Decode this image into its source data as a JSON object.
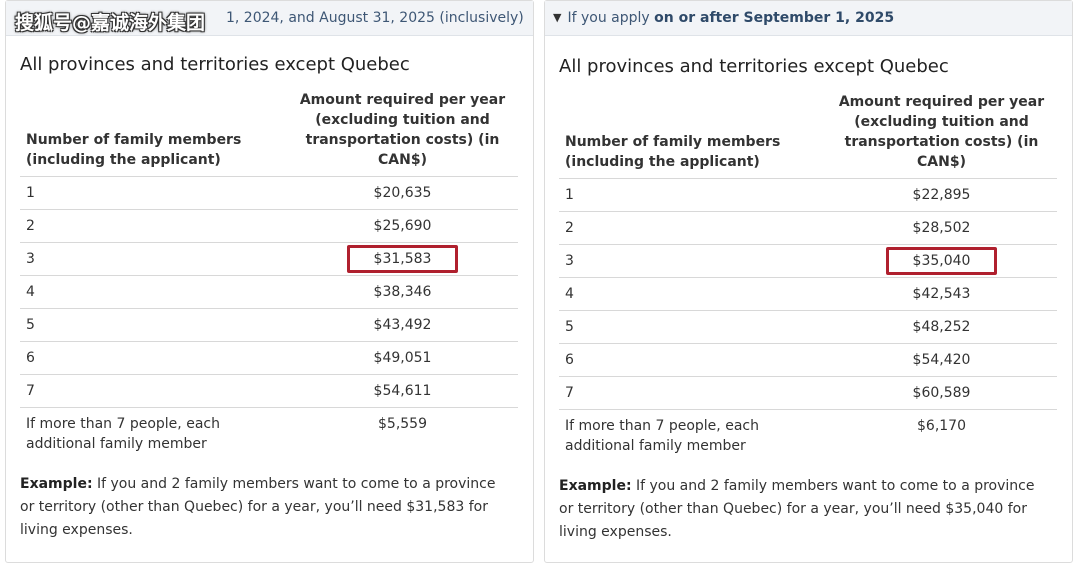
{
  "watermark": "搜狐号@嘉诚海外集团",
  "panels": [
    {
      "summary_prefix": "",
      "summary_bold": "",
      "summary_suffix": "1, 2024, and August 31, 2025 (inclusively)",
      "heading": "All provinces and territories except Quebec",
      "col1_header": "Number of family members (including the applicant)",
      "col2_header": "Amount required per year (excluding tuition and transportation costs) (in CAN$)",
      "rows": [
        {
          "members": "1",
          "amount": "$20,635"
        },
        {
          "members": "2",
          "amount": "$25,690"
        },
        {
          "members": "3",
          "amount": "$31,583"
        },
        {
          "members": "4",
          "amount": "$38,346"
        },
        {
          "members": "5",
          "amount": "$43,492"
        },
        {
          "members": "6",
          "amount": "$49,051"
        },
        {
          "members": "7",
          "amount": "$54,611"
        }
      ],
      "extra_label": "If more than 7 people, each additional family member",
      "extra_amount": "$5,559",
      "example_label": "Example:",
      "example_text": " If you and 2 family members want to come to a province or territory (other than Quebec) for a year, you’ll need $31,583 for living expenses."
    },
    {
      "summary_prefix": "If you apply ",
      "summary_bold": "on or after September 1, 2025",
      "summary_suffix": "",
      "heading": "All provinces and territories except Quebec",
      "col1_header": "Number of family members (including the applicant)",
      "col2_header": "Amount required per year (excluding tuition and transportation costs) (in CAN$)",
      "rows": [
        {
          "members": "1",
          "amount": "$22,895"
        },
        {
          "members": "2",
          "amount": "$28,502"
        },
        {
          "members": "3",
          "amount": "$35,040"
        },
        {
          "members": "4",
          "amount": "$42,543"
        },
        {
          "members": "5",
          "amount": "$48,252"
        },
        {
          "members": "6",
          "amount": "$54,420"
        },
        {
          "members": "7",
          "amount": "$60,589"
        }
      ],
      "extra_label": "If more than 7 people, each additional family member",
      "extra_amount": "$6,170",
      "example_label": "Example:",
      "example_text": " If you and 2 family members want to come to a province or territory (other than Quebec) for a year, you’ll need $35,040 for living expenses."
    }
  ],
  "highlight_row_index": 2,
  "colors": {
    "highlight": "#b0202e",
    "summary_bg": "#f2f4f7",
    "summary_text": "#3e5775"
  },
  "icons": {
    "expand": "triangle-down-icon"
  }
}
